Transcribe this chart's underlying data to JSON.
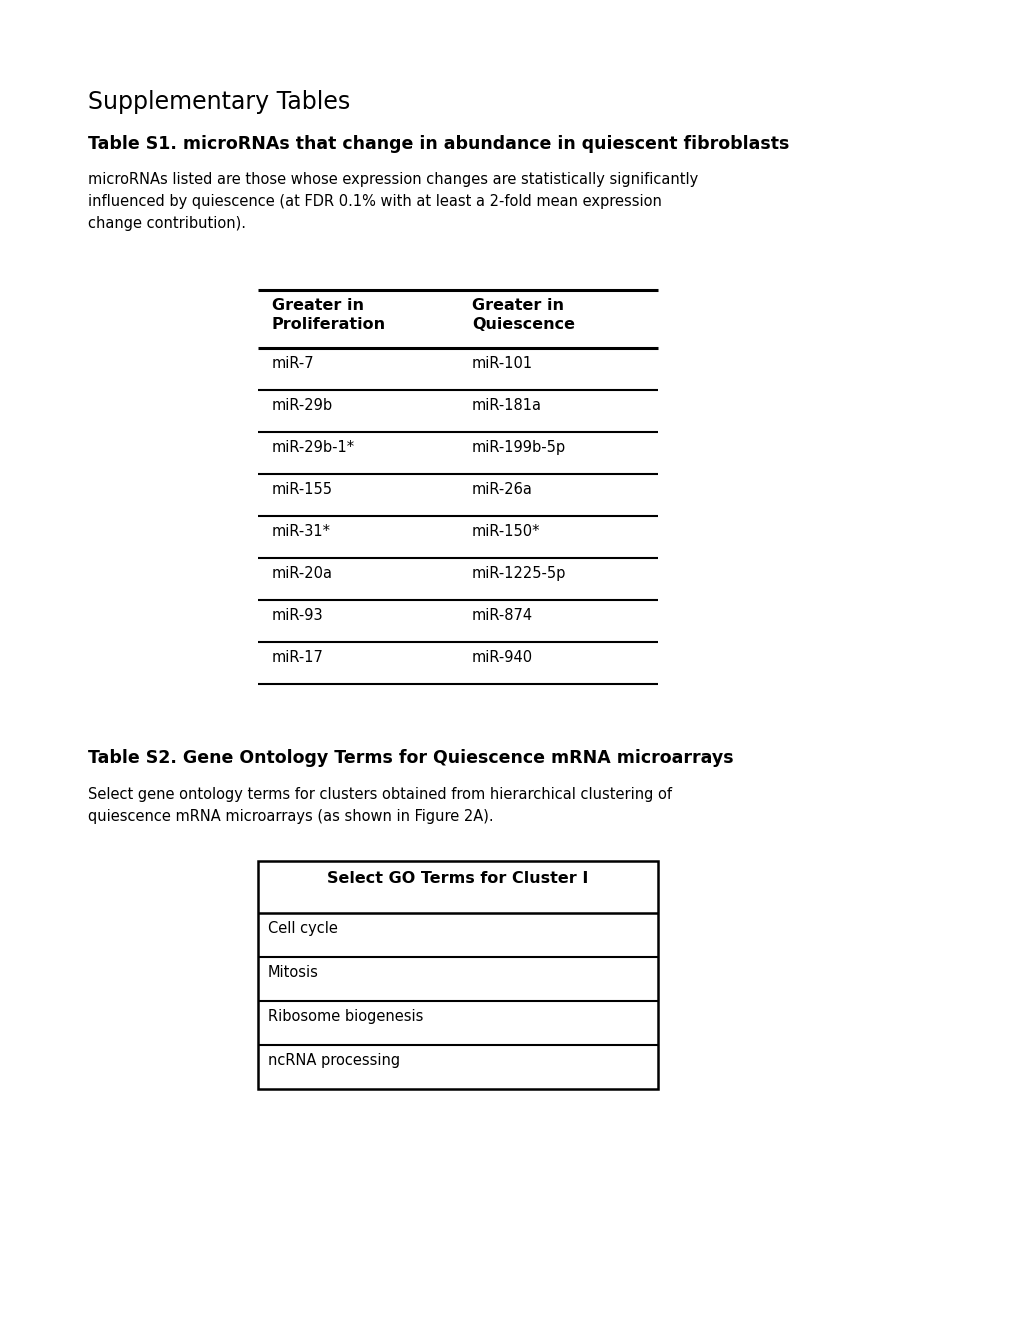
{
  "bg_color": "#ffffff",
  "title_supplementary": "Supplementary Tables",
  "title_s1_bold": "Table S1. microRNAs that change in abundance in quiescent fibroblasts",
  "desc_s1_line1": "microRNAs listed are those whose expression changes are statistically significantly",
  "desc_s1_line2": "influenced by quiescence (at FDR 0.1% with at least a 2-fold mean expression",
  "desc_s1_line3": "change contribution).",
  "col1_header": "Greater in\nProliferation",
  "col2_header": "Greater in\nQuiescence",
  "table_s1_rows": [
    [
      "miR-7",
      "miR-101"
    ],
    [
      "miR-29b",
      "miR-181a"
    ],
    [
      "miR-29b-1*",
      "miR-199b-5p"
    ],
    [
      "miR-155",
      "miR-26a"
    ],
    [
      "miR-31*",
      "miR-150*"
    ],
    [
      "miR-20a",
      "miR-1225-5p"
    ],
    [
      "miR-93",
      "miR-874"
    ],
    [
      "miR-17",
      "miR-940"
    ]
  ],
  "title_s2_bold": "Table S2. Gene Ontology Terms for Quiescence mRNA microarrays",
  "desc_s2_line1": "Select gene ontology terms for clusters obtained from hierarchical clustering of",
  "desc_s2_line2": "quiescence mRNA microarrays (as shown in Figure 2A).",
  "go_table_header": "Select GO Terms for Cluster I",
  "go_table_rows": [
    "Cell cycle",
    "Mitosis",
    "Ribosome biogenesis",
    "ncRNA processing"
  ],
  "fs_supp_title": 17,
  "fs_bold_title": 12.5,
  "fs_body": 10.5,
  "fs_table": 10.5,
  "fs_table_header": 11.5
}
